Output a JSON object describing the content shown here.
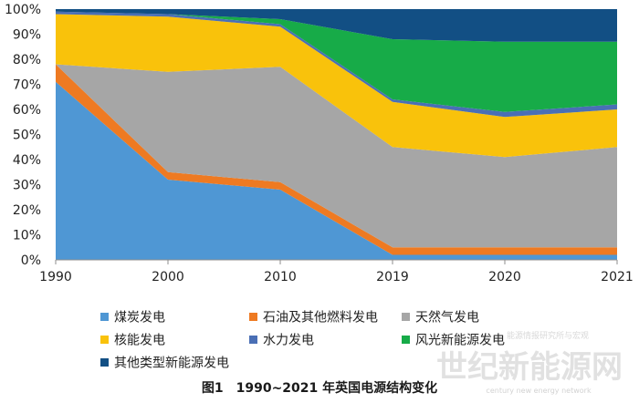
{
  "caption": "图1　1990~2021 年英国电源结构变化",
  "watermark": {
    "main": "世纪新能源网",
    "sub": "century new energy network",
    "small": "能源情报研究所与宏观"
  },
  "chart_data": {
    "type": "area",
    "stacked": true,
    "percent": true,
    "categories": [
      "1990",
      "2000",
      "2010",
      "2019",
      "2020",
      "2021"
    ],
    "yticks": [
      "0%",
      "10%",
      "20%",
      "30%",
      "40%",
      "50%",
      "60%",
      "70%",
      "80%",
      "90%",
      "100%"
    ],
    "ylim": [
      0,
      100
    ],
    "grid": false,
    "legend_position": "bottom",
    "series": [
      {
        "name": "煤炭发电",
        "color": "#4F97D4",
        "values": [
          71,
          32,
          28,
          2,
          2,
          2
        ]
      },
      {
        "name": "石油及其他燃料发电",
        "color": "#EE7A22",
        "values": [
          7,
          3,
          3,
          3,
          3,
          3
        ]
      },
      {
        "name": "天然气发电",
        "color": "#A6A6A6",
        "values": [
          0,
          40,
          46,
          40,
          36,
          40
        ]
      },
      {
        "name": "核能发电",
        "color": "#F9C20B",
        "values": [
          20,
          22,
          16,
          18,
          16,
          15
        ]
      },
      {
        "name": "水力发电",
        "color": "#4A6FB5",
        "values": [
          1,
          1,
          1,
          1,
          2,
          2
        ]
      },
      {
        "name": "风光新能源发电",
        "color": "#17AB48",
        "values": [
          0,
          0,
          2,
          24,
          28,
          25
        ]
      },
      {
        "name": "其他类型新能源发电",
        "color": "#124F84",
        "values": [
          1,
          2,
          4,
          12,
          13,
          13
        ]
      }
    ]
  }
}
